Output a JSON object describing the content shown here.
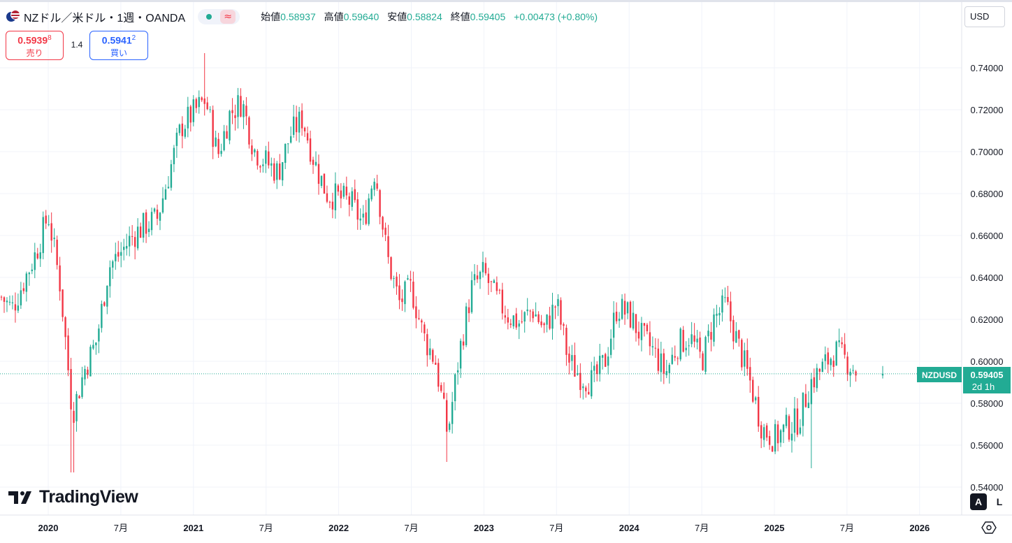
{
  "header": {
    "symbol_title": "NZドル／米ドル・1週・OANDA",
    "open_label": "始値",
    "open_value": "0.58937",
    "high_label": "高値",
    "high_value": "0.59640",
    "low_label": "安値",
    "low_value": "0.58824",
    "close_label": "終値",
    "close_value": "0.59405",
    "change": "+0.00473 (+0.80%)",
    "wave_glyph": "≈"
  },
  "trade": {
    "sell_price": "0.5939",
    "sell_price_sup": "8",
    "sell_label": "売り",
    "spread": "1.4",
    "buy_price": "0.5941",
    "buy_price_sup": "2",
    "buy_label": "買い"
  },
  "currency_button": "USD",
  "price_label": {
    "symbol": "NZDUSD",
    "price": "0.59405",
    "countdown": "2d 1h"
  },
  "logo_text": "TradingView",
  "scale_buttons": {
    "auto": "A",
    "log": "L"
  },
  "colors": {
    "up": "#22ab94",
    "down": "#f23645",
    "grid": "#f0f3fa",
    "text": "#131722",
    "accent_sell": "#f23645",
    "accent_buy": "#2962ff"
  },
  "icons": [
    "nz-flag-icon",
    "us-flag-icon",
    "status-dot-icon",
    "wave-icon",
    "tradingview-logo-icon",
    "settings-icon"
  ],
  "chart_data": {
    "type": "candlestick",
    "interval": "1W",
    "y_axis": {
      "ylim": [
        0.534,
        0.752
      ],
      "position": "right",
      "ticks": [
        "0.54000",
        "0.56000",
        "0.58000",
        "0.60000",
        "0.62000",
        "0.64000",
        "0.66000",
        "0.68000",
        "0.70000",
        "0.72000",
        "0.74000"
      ]
    },
    "x_axis": {
      "ticks": [
        {
          "label": "2020",
          "bold": true,
          "date": "2020-01"
        },
        {
          "label": "7月",
          "bold": false,
          "date": "2020-07"
        },
        {
          "label": "2021",
          "bold": true,
          "date": "2021-01"
        },
        {
          "label": "7月",
          "bold": false,
          "date": "2021-07"
        },
        {
          "label": "2022",
          "bold": true,
          "date": "2022-01"
        },
        {
          "label": "7月",
          "bold": false,
          "date": "2022-07"
        },
        {
          "label": "2023",
          "bold": true,
          "date": "2023-01"
        },
        {
          "label": "7月",
          "bold": false,
          "date": "2023-07"
        },
        {
          "label": "2024",
          "bold": true,
          "date": "2024-01"
        },
        {
          "label": "7月",
          "bold": false,
          "date": "2024-07"
        },
        {
          "label": "2025",
          "bold": true,
          "date": "2025-01"
        },
        {
          "label": "7月",
          "bold": false,
          "date": "2025-07"
        },
        {
          "label": "2026",
          "bold": true,
          "date": "2026-01"
        }
      ]
    },
    "last_price": 0.59405,
    "grid": true,
    "close_path_by_date": [
      [
        "2019-08",
        0.638
      ],
      [
        "2019-10",
        0.625
      ],
      [
        "2019-12",
        0.652
      ],
      [
        "2020-01",
        0.67
      ],
      [
        "2020-02",
        0.636
      ],
      [
        "2020-03",
        0.575
      ],
      [
        "2020-04",
        0.596
      ],
      [
        "2020-05",
        0.61
      ],
      [
        "2020-06",
        0.645
      ],
      [
        "2020-07",
        0.652
      ],
      [
        "2020-08",
        0.66
      ],
      [
        "2020-09",
        0.665
      ],
      [
        "2020-10",
        0.668
      ],
      [
        "2020-11",
        0.69
      ],
      [
        "2020-12",
        0.712
      ],
      [
        "2021-02",
        0.725
      ],
      [
        "2021-03",
        0.698
      ],
      [
        "2021-04",
        0.718
      ],
      [
        "2021-05",
        0.724
      ],
      [
        "2021-06",
        0.701
      ],
      [
        "2021-07",
        0.695
      ],
      [
        "2021-08",
        0.69
      ],
      [
        "2021-09",
        0.708
      ],
      [
        "2021-10",
        0.716
      ],
      [
        "2021-11",
        0.695
      ],
      [
        "2021-12",
        0.68
      ],
      [
        "2022-02",
        0.676
      ],
      [
        "2022-03",
        0.665
      ],
      [
        "2022-04",
        0.692
      ],
      [
        "2022-05",
        0.65
      ],
      [
        "2022-06",
        0.628
      ],
      [
        "2022-07",
        0.635
      ],
      [
        "2022-08",
        0.612
      ],
      [
        "2022-09",
        0.6
      ],
      [
        "2022-10",
        0.565
      ],
      [
        "2022-11",
        0.605
      ],
      [
        "2022-12",
        0.635
      ],
      [
        "2023-01",
        0.642
      ],
      [
        "2023-02",
        0.63
      ],
      [
        "2023-03",
        0.622
      ],
      [
        "2023-04",
        0.618
      ],
      [
        "2023-05",
        0.625
      ],
      [
        "2023-06",
        0.615
      ],
      [
        "2023-07",
        0.628
      ],
      [
        "2023-08",
        0.6
      ],
      [
        "2023-09",
        0.593
      ],
      [
        "2023-10",
        0.59
      ],
      [
        "2023-11",
        0.6
      ],
      [
        "2023-12",
        0.626
      ],
      [
        "2024-01",
        0.622
      ],
      [
        "2024-02",
        0.612
      ],
      [
        "2024-03",
        0.605
      ],
      [
        "2024-04",
        0.594
      ],
      [
        "2024-05",
        0.608
      ],
      [
        "2024-06",
        0.612
      ],
      [
        "2024-07",
        0.6
      ],
      [
        "2024-08",
        0.62
      ],
      [
        "2024-09",
        0.627
      ],
      [
        "2024-10",
        0.608
      ],
      [
        "2024-11",
        0.59
      ],
      [
        "2024-12",
        0.568
      ],
      [
        "2025-01",
        0.563
      ],
      [
        "2025-02",
        0.568
      ],
      [
        "2025-03",
        0.572
      ],
      [
        "2025-04",
        0.59
      ],
      [
        "2025-05",
        0.597
      ],
      [
        "2025-06",
        0.605
      ],
      [
        "2025-07",
        0.6
      ],
      [
        "2025-08",
        0.594
      ]
    ],
    "notable_extremes": [
      {
        "date": "2020-03",
        "low": 0.547
      },
      {
        "date": "2021-02",
        "high": 0.747
      },
      {
        "date": "2022-10",
        "low": 0.552
      },
      {
        "date": "2025-04",
        "low": 0.549
      }
    ]
  }
}
